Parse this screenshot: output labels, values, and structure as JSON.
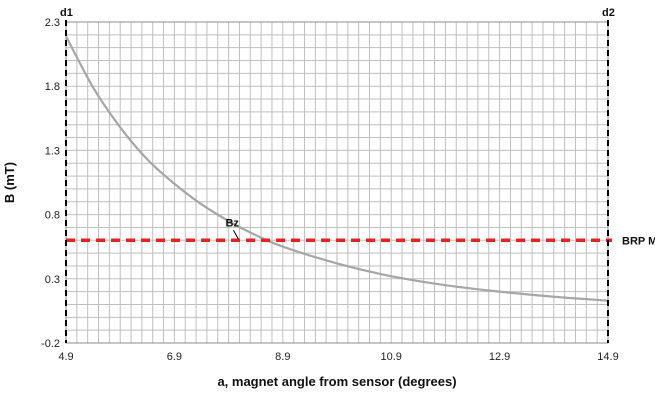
{
  "chart_data": {
    "type": "line",
    "xlabel": "a, magnet angle from sensor (degrees)",
    "ylabel": "B (mT)",
    "xlim": [
      4.9,
      14.9
    ],
    "ylim": [
      -0.2,
      2.3
    ],
    "xticks": [
      "4.9",
      "6.9",
      "8.9",
      "10.9",
      "12.9",
      "14.9"
    ],
    "yticks": [
      "-0.2",
      "0.3",
      "0.8",
      "1.3",
      "1.8",
      "2.3"
    ],
    "grid": true,
    "series": [
      {
        "name": "Bz",
        "color": "#a6a6a6",
        "x": [
          4.9,
          5.4,
          5.9,
          6.4,
          6.9,
          7.4,
          7.9,
          8.4,
          8.9,
          9.9,
          10.9,
          11.9,
          12.9,
          13.9,
          14.9
        ],
        "y": [
          2.19,
          1.79,
          1.48,
          1.23,
          1.04,
          0.88,
          0.75,
          0.64,
          0.55,
          0.42,
          0.32,
          0.25,
          0.2,
          0.16,
          0.13
        ]
      }
    ],
    "threshold": {
      "label": "BRP M",
      "value": 0.6,
      "color": "#e8231e"
    },
    "vlines": [
      {
        "label": "d1",
        "x": 4.9
      },
      {
        "label": "d2",
        "x": 14.9
      }
    ],
    "annotations": [
      {
        "text": "Bz",
        "x": 8.1,
        "y": 0.6
      }
    ]
  }
}
